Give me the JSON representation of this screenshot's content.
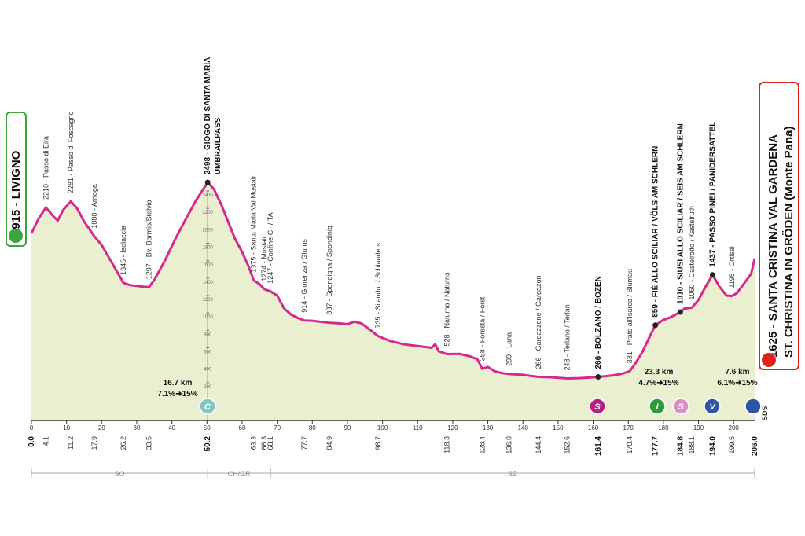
{
  "chart_data": {
    "type": "area",
    "color": "#d6298f",
    "fill": "#e9efcf",
    "start": "1915 - LIVIGNO",
    "finish": [
      "1625 - SANTA CRISTINA VAL GARDENA",
      "ST. CHRISTINA IN GRÖDEN (Monte Pana)"
    ],
    "x": [
      0,
      2,
      4.1,
      6,
      7.5,
      9,
      11.2,
      13,
      15,
      17.9,
      20,
      22,
      24,
      26.2,
      28,
      30,
      32,
      33.5,
      35,
      38,
      41,
      44,
      47,
      50.2,
      52,
      54,
      56,
      58,
      60,
      62,
      63.3,
      65,
      66.3,
      68.1,
      70,
      72,
      74,
      76,
      77.7,
      80,
      82,
      84.9,
      88,
      90,
      92,
      94,
      96,
      98.7,
      102,
      106,
      110,
      114,
      115,
      116,
      118.3,
      122,
      125,
      127,
      128.4,
      130,
      132,
      134,
      136,
      140,
      144.4,
      148,
      152.6,
      156,
      159,
      161.4,
      165,
      168,
      170.4,
      172,
      174,
      176,
      177.7,
      180,
      182,
      184.8,
      186,
      188.1,
      190,
      192,
      194,
      196,
      198,
      199.5,
      201,
      203,
      205,
      206
    ],
    "values": [
      1915,
      2080,
      2210,
      2120,
      2060,
      2180,
      2281,
      2200,
      2050,
      1880,
      1780,
      1640,
      1500,
      1345,
      1320,
      1310,
      1300,
      1297,
      1380,
      1600,
      1850,
      2080,
      2300,
      2498,
      2420,
      2250,
      2050,
      1850,
      1700,
      1520,
      1375,
      1330,
      1274,
      1247,
      1200,
      1050,
      980,
      940,
      914,
      910,
      900,
      887,
      880,
      870,
      900,
      880,
      820,
      735,
      680,
      640,
      620,
      600,
      640,
      560,
      528,
      530,
      500,
      470,
      358,
      380,
      330,
      310,
      299,
      290,
      266,
      262,
      248,
      252,
      258,
      266,
      280,
      300,
      331,
      420,
      550,
      720,
      859,
      920,
      950,
      1010,
      1050,
      1060,
      1150,
      1300,
      1437,
      1300,
      1200,
      1195,
      1230,
      1340,
      1450,
      1625
    ],
    "xlim": [
      0,
      206
    ],
    "xticks": [
      0,
      10,
      20,
      30,
      40,
      50,
      60,
      70,
      80,
      90,
      100,
      110,
      120,
      130,
      140,
      150,
      160,
      170,
      180,
      190,
      200
    ],
    "ylim": [
      0,
      2400
    ],
    "yticks": [
      200,
      400,
      600,
      800,
      1000,
      1200,
      1400,
      1600,
      1800,
      2000,
      2200,
      2400
    ],
    "waypoints": [
      {
        "km": {
          "value": 4.1,
          "label": "4.1"
        },
        "lines": [
          "2210 - Passo di Eira"
        ],
        "bold": false
      },
      {
        "km": 11.2,
        "lines": [
          "2281 - Passo di Foscagno"
        ],
        "bold": false
      },
      {
        "km": 17.9,
        "lines": [
          "1880 - Arnoga"
        ],
        "bold": false
      },
      {
        "km": 26.2,
        "lines": [
          "1345 - Isolaccia"
        ],
        "bold": false
      },
      {
        "km": 33.5,
        "lines": [
          "1297 - Bv. Bormio/Stelvio"
        ],
        "bold": false
      },
      {
        "km": 50.2,
        "lines": [
          "2498 - GIOGO DI SANTA MARIA",
          "UMBRAILPASS"
        ],
        "bold": true
      },
      {
        "km": 63.3,
        "lines": [
          "1375 - Santa Maria Val Mustair"
        ],
        "bold": false
      },
      {
        "km": 66.3,
        "lines": [
          "1274 - Mustair"
        ],
        "bold": false
      },
      {
        "km": 68.1,
        "lines": [
          "1247 - Confine CH/ITA"
        ],
        "bold": false
      },
      {
        "km": 77.7,
        "lines": [
          "914 - Glorenza / Glurns"
        ],
        "bold": false
      },
      {
        "km": 84.9,
        "lines": [
          "887 - Spondigna / Spondinig"
        ],
        "bold": false
      },
      {
        "km": 98.7,
        "lines": [
          "735 - Silandro / Schlanders"
        ],
        "bold": false
      },
      {
        "km": 118.3,
        "lines": [
          "528 - Naturno / Naturns"
        ],
        "bold": false
      },
      {
        "km": 128.4,
        "lines": [
          "358 - Foresta / Forst"
        ],
        "bold": false
      },
      {
        "km": {
          "value": 136,
          "label": "136.0"
        },
        "lines": [
          "299 - Lana"
        ],
        "bold": false
      },
      {
        "km": 144.4,
        "lines": [
          "266 - Gargazzone / Gargazon"
        ],
        "bold": false
      },
      {
        "km": 152.6,
        "lines": [
          "248 - Terlano / Terlan"
        ],
        "bold": false
      },
      {
        "km": 161.4,
        "lines": [
          "266 - BOLZANO / BOZEN"
        ],
        "bold": true
      },
      {
        "km": 170.4,
        "lines": [
          "331 - Prato all'Isarco / Blumau"
        ],
        "bold": false
      },
      {
        "km": 177.7,
        "lines": [
          "859 - FIÈ ALLO SCILIAR / VÖLS AM SCHLERN"
        ],
        "bold": true
      },
      {
        "km": 184.8,
        "lines": [
          "1010 - SIUSI ALLO SCILIAR / SEIS AM SCHLERN"
        ],
        "bold": true
      },
      {
        "km": 188.1,
        "lines": [
          "1060 - Castelrotto / Kastelruth"
        ],
        "bold": false
      },
      {
        "km": {
          "value": 194,
          "label": "194.0"
        },
        "lines": [
          "1437 - PASSO PINEI / PANIDERSATTEL"
        ],
        "bold": true
      },
      {
        "km": 199.5,
        "lines": [
          "1195 - Ortisei"
        ],
        "bold": false
      }
    ],
    "endpoints": [
      {
        "value": 0,
        "label": "0.0"
      },
      {
        "value": 206,
        "label": "206.0"
      }
    ],
    "climbs": [
      {
        "length": "16.7 km",
        "gradient": "7.1%➜15%"
      },
      {
        "length": "23.3 km",
        "gradient": "4.7%➜15%"
      },
      {
        "length": "7.6 km",
        "gradient": "6.1%➜15%"
      }
    ],
    "icons": [
      "C",
      "S",
      "I",
      "S",
      "V"
    ],
    "regions": [
      "SO",
      "CH/GR",
      "BZ"
    ],
    "sds": "SDS"
  }
}
